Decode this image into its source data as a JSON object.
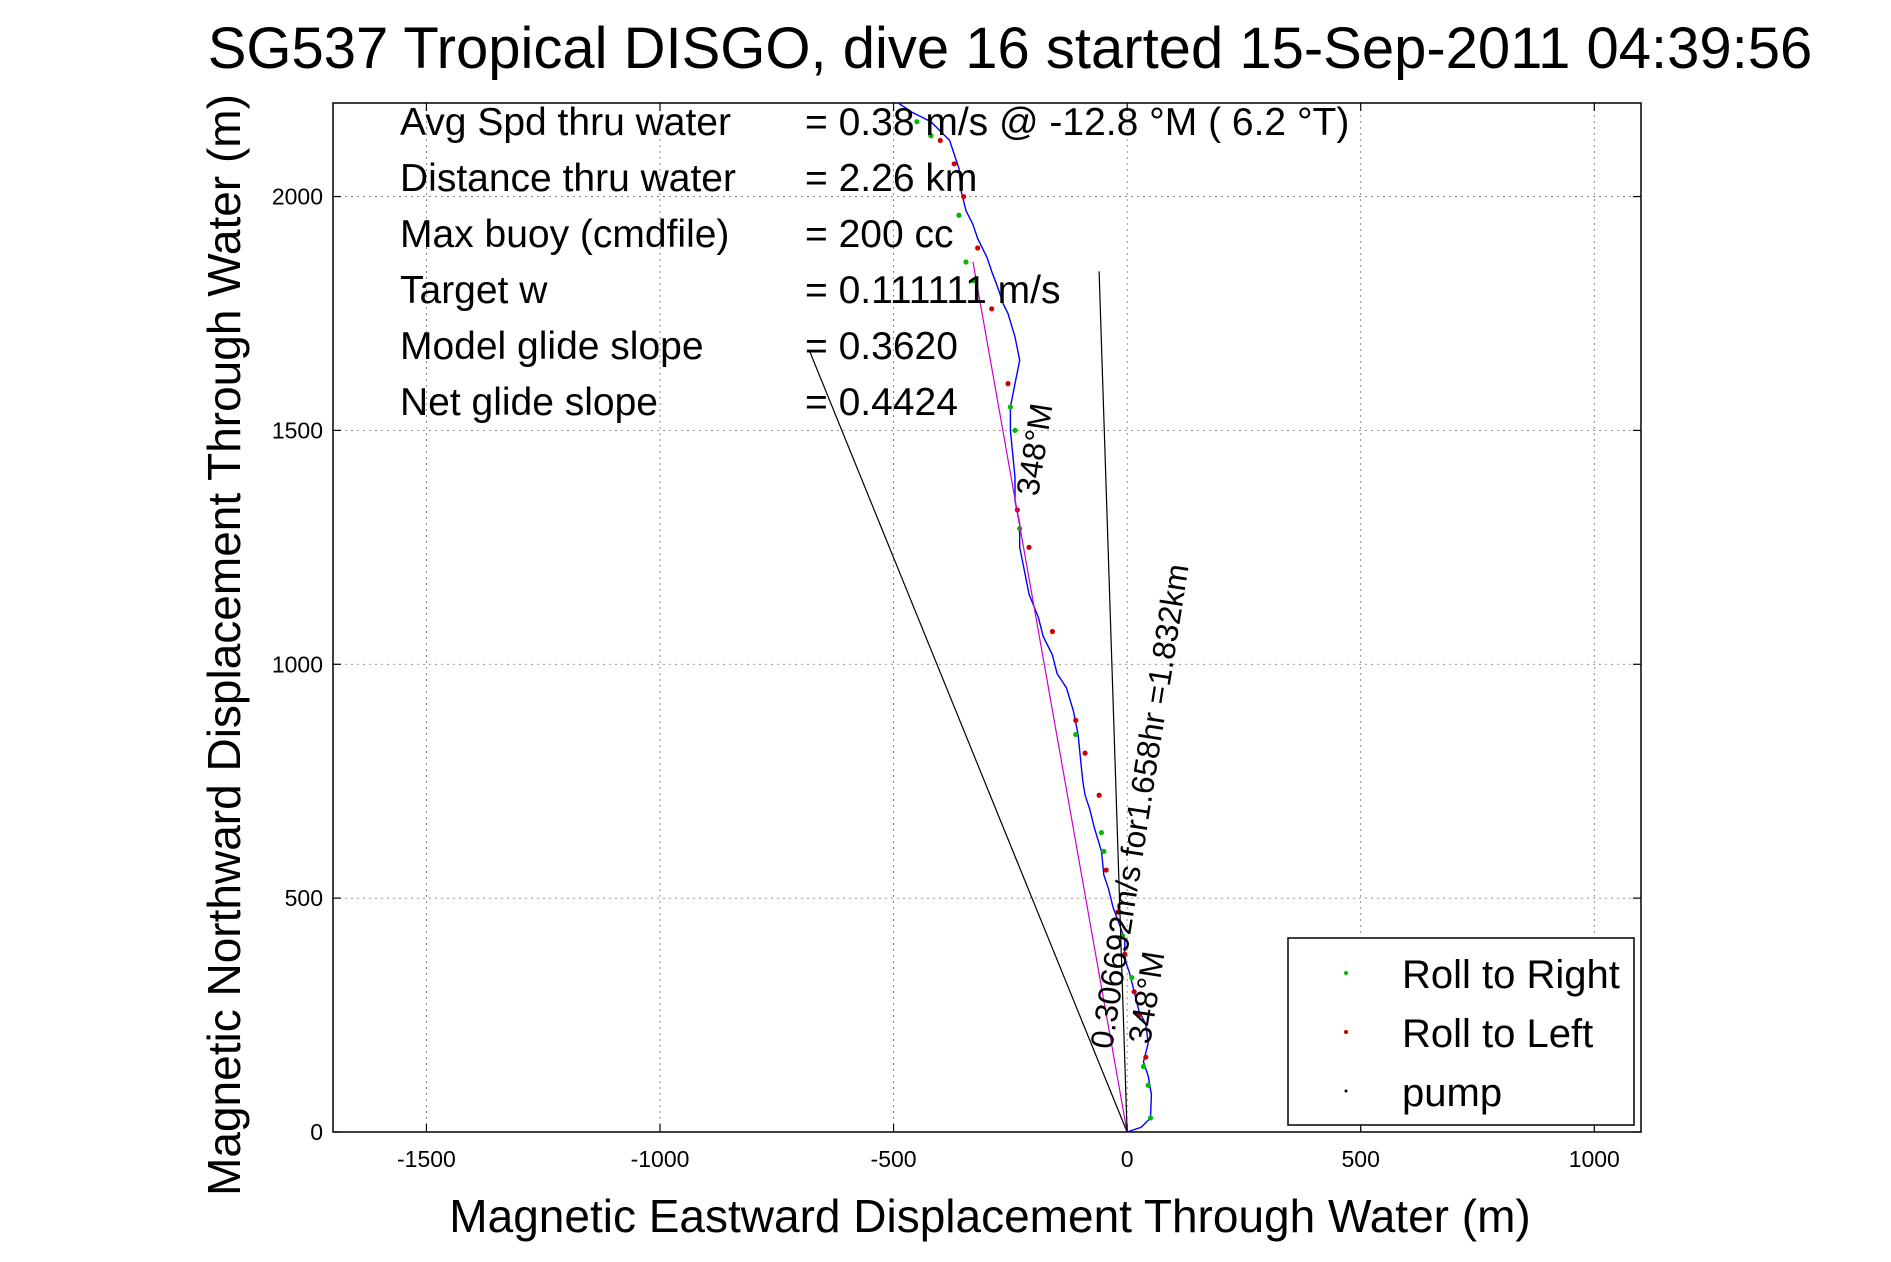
{
  "chart_data": {
    "type": "line",
    "title": "SG537 Tropical DISGO, dive 16 started 15-Sep-2011 04:39:56",
    "xlabel": "Magnetic Eastward Displacement Through Water (m)",
    "ylabel": "Magnetic Northward Displacement Through Water (m)",
    "xlim": [
      -1700,
      1100
    ],
    "ylim": [
      0,
      2200
    ],
    "xticks": [
      -1500,
      -1000,
      -500,
      0,
      500,
      1000
    ],
    "yticks": [
      0,
      500,
      1000,
      1500,
      2000
    ],
    "grid": true,
    "legend_position": "bottom-right",
    "stats": [
      {
        "label": "Avg Spd thru water",
        "value": "=  0.38 m/s @ -12.8 °M (  6.2 °T)"
      },
      {
        "label": "Distance thru water",
        "value": "=  2.26 km"
      },
      {
        "label": "Max buoy (cmdfile)",
        "value": "= 200 cc"
      },
      {
        "label": "Target w",
        "value": "= 0.111111 m/s"
      },
      {
        "label": "Model glide slope",
        "value": "= 0.3620"
      },
      {
        "label": "Net glide slope",
        "value": "= 0.4424"
      }
    ],
    "annotations": [
      "0.306692m/s for1.658hr =1.832km",
      "348°M",
      "348°M"
    ],
    "series": [
      {
        "name": "track",
        "color": "#0000ff",
        "x": [
          0,
          30,
          50,
          52,
          45,
          35,
          45,
          40,
          25,
          15,
          5,
          -5,
          -5,
          -15,
          -30,
          -40,
          -50,
          -55,
          -70,
          -80,
          -90,
          -95,
          -100,
          -105,
          -115,
          -130,
          -150,
          -160,
          -180,
          -190,
          -210,
          -220,
          -230,
          -230,
          -240,
          -240,
          -245,
          -250,
          -250,
          -240,
          -230,
          -240,
          -255,
          -265,
          -275,
          -290,
          -300,
          -320,
          -330,
          -345,
          -355,
          -360,
          -370,
          -380,
          -400,
          -420,
          -440,
          -460,
          -475,
          -490
        ],
        "y": [
          0,
          10,
          30,
          80,
          120,
          150,
          190,
          230,
          260,
          300,
          340,
          370,
          410,
          440,
          480,
          520,
          550,
          600,
          650,
          690,
          720,
          750,
          800,
          850,
          900,
          950,
          980,
          1020,
          1060,
          1100,
          1150,
          1200,
          1250,
          1300,
          1350,
          1400,
          1450,
          1500,
          1550,
          1600,
          1650,
          1700,
          1750,
          1770,
          1800,
          1840,
          1870,
          1910,
          1940,
          1970,
          2010,
          2060,
          2090,
          2120,
          2140,
          2160,
          2170,
          2180,
          2190,
          2200
        ]
      },
      {
        "name": "Roll to Right",
        "color": "#00bb00",
        "x": [
          50,
          45,
          35,
          10,
          -10,
          -50,
          -55,
          -110,
          -230,
          -240,
          -250,
          -330,
          -345,
          -360,
          -420,
          -450
        ],
        "y": [
          30,
          100,
          140,
          330,
          420,
          600,
          640,
          850,
          1290,
          1500,
          1550,
          1820,
          1860,
          1960,
          2130,
          2160
        ]
      },
      {
        "name": "Roll to Left",
        "color": "#cc0000",
        "x": [
          40,
          25,
          15,
          -5,
          -20,
          -45,
          -60,
          -90,
          -110,
          -160,
          -210,
          -235,
          -255,
          -290,
          -320,
          -350,
          -370,
          -400
        ],
        "y": [
          160,
          250,
          300,
          380,
          470,
          560,
          720,
          810,
          880,
          1070,
          1250,
          1330,
          1600,
          1760,
          1890,
          2000,
          2070,
          2120
        ]
      },
      {
        "name": "pump",
        "color": "#000000",
        "x": [],
        "y": []
      },
      {
        "name": "Net direction",
        "color": "#000000",
        "x": [
          0,
          -680
        ],
        "y": [
          0,
          1670
        ]
      },
      {
        "name": "Model direction",
        "color": "#cc00cc",
        "x": [
          0,
          -330
        ],
        "y": [
          0,
          1860
        ]
      },
      {
        "name": "Heading line",
        "color": "#000000",
        "x": [
          0,
          -60
        ],
        "y": [
          0,
          1840
        ]
      }
    ]
  }
}
